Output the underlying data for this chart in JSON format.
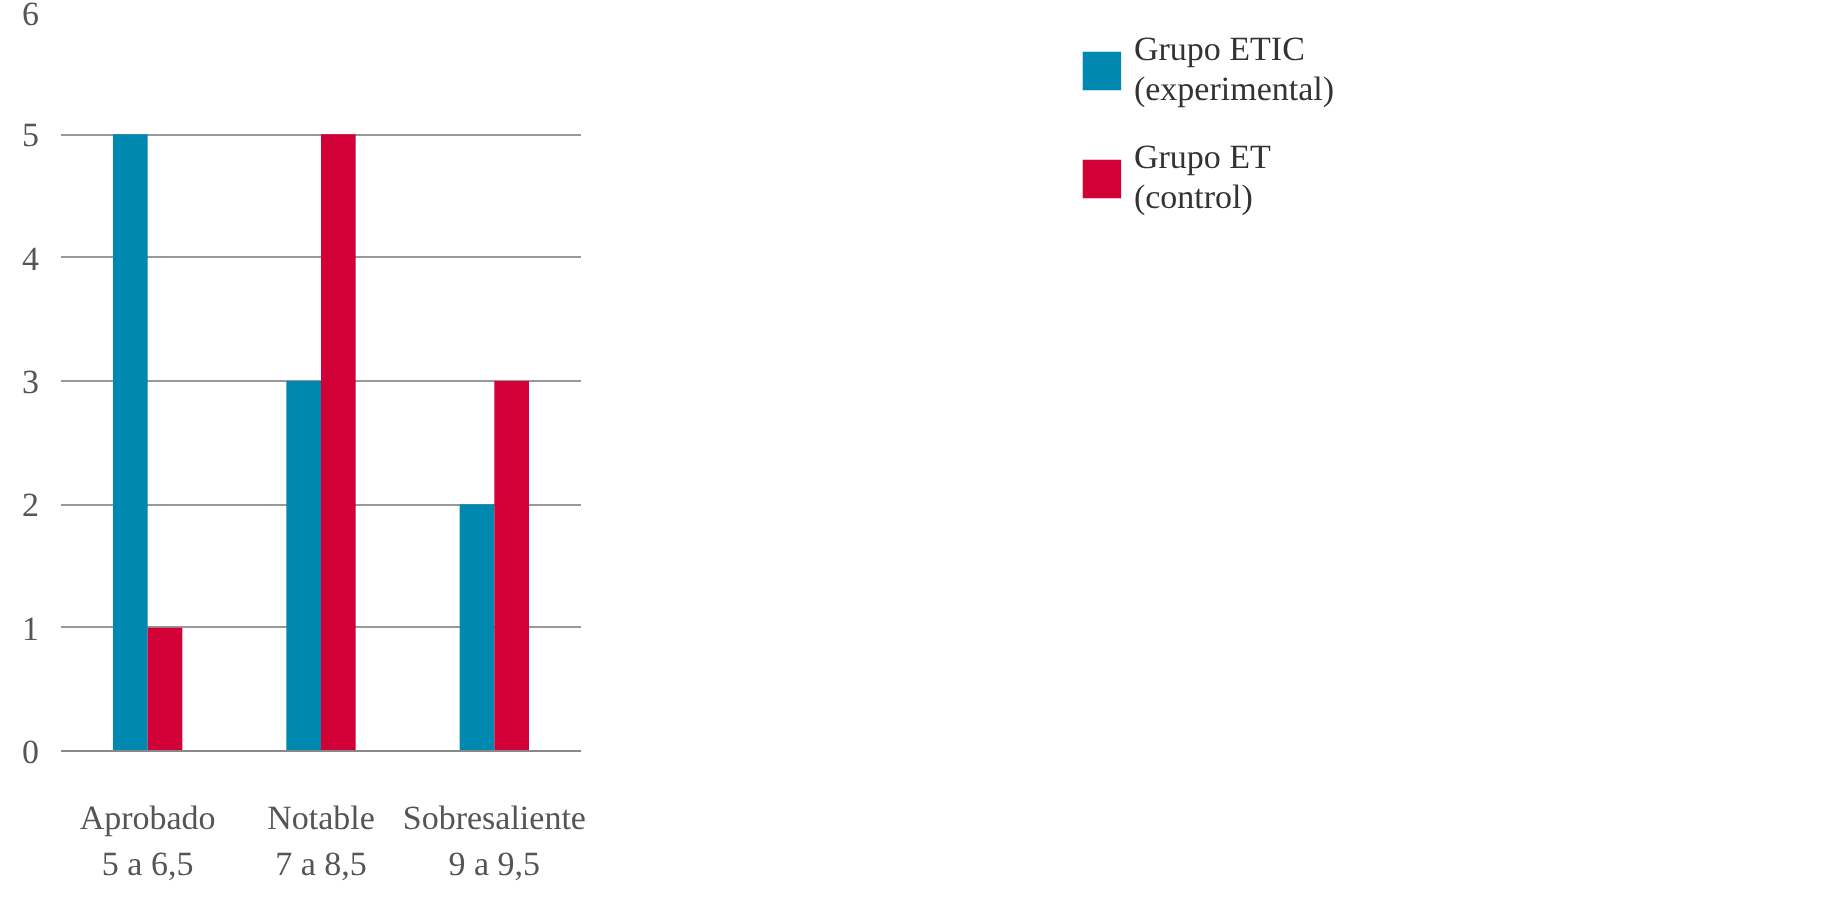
{
  "chart_data": {
    "type": "bar",
    "categories": [
      "Aprobado\n5 a 6,5",
      "Notable\n7 a 8,5",
      "Sobresaliente\n9 a 9,5"
    ],
    "series": [
      {
        "name": "Grupo ETIC\n(experimental)",
        "color": "#0089b0",
        "values": [
          5,
          3,
          2
        ]
      },
      {
        "name": "Grupo ET\n(control)",
        "color": "#d10037",
        "values": [
          1,
          5,
          3
        ]
      }
    ],
    "ylim": [
      0,
      6
    ],
    "yticks": [
      0,
      1,
      2,
      3,
      4,
      5,
      6
    ],
    "grid": "y",
    "legend": "top right"
  }
}
